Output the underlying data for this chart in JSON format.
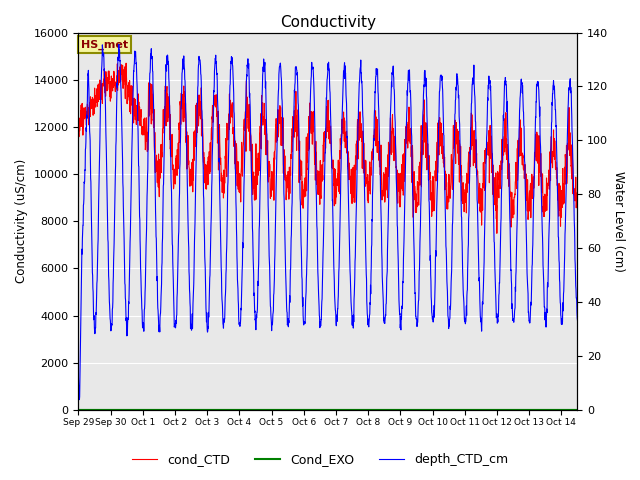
{
  "title": "Conductivity",
  "ylabel_left": "Conductivity (uS/cm)",
  "ylabel_right": "Water Level (cm)",
  "ylim_left": [
    0,
    16000
  ],
  "ylim_right": [
    0,
    140
  ],
  "yticks_left": [
    0,
    2000,
    4000,
    6000,
    8000,
    10000,
    12000,
    14000,
    16000
  ],
  "yticks_right": [
    0,
    20,
    40,
    60,
    80,
    100,
    120,
    140
  ],
  "background_color": "#e8e8e8",
  "figure_background": "#ffffff",
  "grid_color": "#ffffff",
  "legend_labels": [
    "cond_CTD",
    "Cond_EXO",
    "depth_CTD_cm"
  ],
  "line_colors": {
    "cond_CTD": "red",
    "Cond_EXO": "green",
    "depth_CTD_cm": "blue"
  },
  "annotation_text": "HS_met",
  "annotation_bg": "#f5f5a0",
  "annotation_border": "#8B8B00",
  "n_points": 2000,
  "total_days": 15.5,
  "x_tick_labels": [
    "Sep 29",
    "Sep 30",
    "Oct 1",
    "Oct 2",
    "Oct 3",
    "Oct 4",
    "Oct 5",
    "Oct 6",
    "Oct 7",
    "Oct 8",
    "Oct 9",
    "Oct 10",
    "Oct 11",
    "Oct 12",
    "Oct 13",
    "Oct 14"
  ],
  "x_tick_days": [
    0,
    1,
    2,
    3,
    4,
    5,
    6,
    7,
    8,
    9,
    10,
    11,
    12,
    13,
    14,
    15
  ]
}
